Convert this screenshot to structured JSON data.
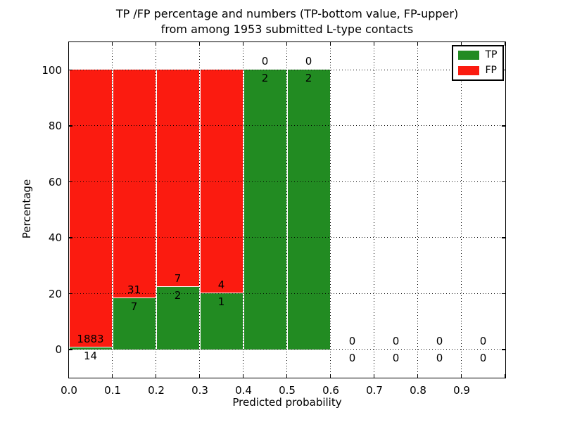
{
  "chart_data": {
    "type": "bar",
    "stacked": true,
    "title": "TP /FP percentage and numbers (TP-bottom value, FP-upper) from among 1953 submitted L-type contacts",
    "title_lines": [
      "TP /FP percentage and numbers (TP-bottom value, FP-upper)",
      "from among 1953 submitted L-type contacts"
    ],
    "xlabel": "Predicted probability",
    "ylabel": "Percentage",
    "xlim": [
      0.0,
      1.0
    ],
    "ylim": [
      -10,
      110
    ],
    "grid": "dotted",
    "total_contacts": 1953,
    "legend": {
      "position": "upper-right",
      "entries": [
        {
          "label": "TP",
          "color": "#228B22"
        },
        {
          "label": "FP",
          "color": "#FB1B10"
        }
      ]
    },
    "colors": {
      "tp": "#228B22",
      "fp": "#FB1B10",
      "bar_edge": "#FFFFFF",
      "grid": "#000000",
      "axis": "#000000",
      "text": "#000000",
      "background": "#FFFFFF"
    },
    "xticks": [
      {
        "value": 0.0,
        "label": "0.0"
      },
      {
        "value": 0.1,
        "label": "0.1"
      },
      {
        "value": 0.2,
        "label": "0.2"
      },
      {
        "value": 0.3,
        "label": "0.3"
      },
      {
        "value": 0.4,
        "label": "0.4"
      },
      {
        "value": 0.5,
        "label": "0.5"
      },
      {
        "value": 0.6,
        "label": "0.6"
      },
      {
        "value": 0.7,
        "label": "0.7"
      },
      {
        "value": 0.8,
        "label": "0.8"
      },
      {
        "value": 0.9,
        "label": "0.9"
      },
      {
        "value": 1.0,
        "label": ""
      }
    ],
    "yticks": [
      {
        "value": 0,
        "label": "0"
      },
      {
        "value": 20,
        "label": "20"
      },
      {
        "value": 40,
        "label": "40"
      },
      {
        "value": 60,
        "label": "60"
      },
      {
        "value": 80,
        "label": "80"
      },
      {
        "value": 100,
        "label": "100"
      }
    ],
    "categories": [
      "0.0-0.1",
      "0.1-0.2",
      "0.2-0.3",
      "0.3-0.4",
      "0.4-0.5",
      "0.5-0.6",
      "0.6-0.7",
      "0.7-0.8",
      "0.8-0.9",
      "0.9-1.0"
    ],
    "series": [
      {
        "name": "TP",
        "counts": [
          14,
          7,
          2,
          1,
          2,
          2,
          0,
          0,
          0,
          0
        ]
      },
      {
        "name": "FP",
        "counts": [
          1883,
          31,
          7,
          4,
          0,
          0,
          0,
          0,
          0,
          0
        ]
      }
    ],
    "bins": [
      {
        "x_start": 0.0,
        "x_end": 0.1,
        "tp_count": 14,
        "fp_count": 1883
      },
      {
        "x_start": 0.1,
        "x_end": 0.2,
        "tp_count": 7,
        "fp_count": 31
      },
      {
        "x_start": 0.2,
        "x_end": 0.3,
        "tp_count": 2,
        "fp_count": 7
      },
      {
        "x_start": 0.3,
        "x_end": 0.4,
        "tp_count": 1,
        "fp_count": 4
      },
      {
        "x_start": 0.4,
        "x_end": 0.5,
        "tp_count": 2,
        "fp_count": 0
      },
      {
        "x_start": 0.5,
        "x_end": 0.6,
        "tp_count": 2,
        "fp_count": 0
      },
      {
        "x_start": 0.6,
        "x_end": 0.7,
        "tp_count": 0,
        "fp_count": 0
      },
      {
        "x_start": 0.7,
        "x_end": 0.8,
        "tp_count": 0,
        "fp_count": 0
      },
      {
        "x_start": 0.8,
        "x_end": 0.9,
        "tp_count": 0,
        "fp_count": 0
      },
      {
        "x_start": 0.9,
        "x_end": 1.0,
        "tp_count": 0,
        "fp_count": 0
      }
    ]
  }
}
